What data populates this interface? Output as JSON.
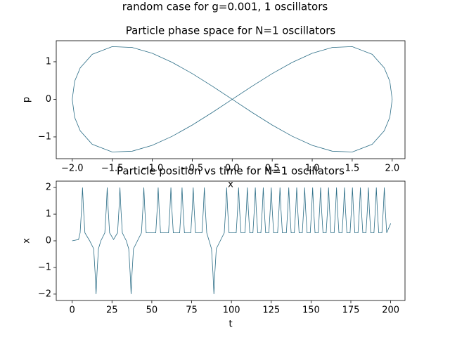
{
  "suptitle": "random case for g=0.001, 1 oscillators",
  "chart_data": [
    {
      "type": "line",
      "title": "Particle phase space for N=1 oscillators",
      "x_label": "x",
      "y_label": "p",
      "color": "#2b6d86",
      "x": [
        0,
        0.25,
        0.5,
        0.75,
        1,
        1.25,
        1.5,
        1.75,
        1.9,
        1.97,
        2,
        1.97,
        1.9,
        1.75,
        1.5,
        1.25,
        1,
        0.75,
        0.5,
        0.25,
        0,
        -0.25,
        -0.5,
        -0.75,
        -1,
        -1.25,
        -1.5,
        -1.75,
        -1.9,
        -1.97,
        -2,
        -1.97,
        -1.9,
        -1.75,
        -1.5,
        -1.25,
        -1,
        -0.75,
        -0.5,
        -0.25,
        0
      ],
      "values": [
        0,
        0.351,
        0.685,
        0.983,
        1.225,
        1.38,
        1.403,
        1.198,
        0.839,
        0.481,
        0,
        -0.481,
        -0.839,
        -1.198,
        -1.403,
        -1.38,
        -1.225,
        -0.983,
        -0.685,
        -0.351,
        0,
        -0.351,
        -0.685,
        -0.983,
        -1.225,
        -1.38,
        -1.403,
        -1.198,
        -0.839,
        -0.481,
        0,
        0.481,
        0.839,
        1.198,
        1.403,
        1.38,
        1.225,
        0.983,
        0.685,
        0.351,
        0
      ],
      "xlim": [
        -2.2,
        2.16
      ],
      "ylim": [
        -1.58,
        1.56
      ],
      "xticks": [
        {
          "value": -2,
          "label": "−2.0"
        },
        {
          "value": -1.5,
          "label": "−1.5"
        },
        {
          "value": -1,
          "label": "−1.0"
        },
        {
          "value": -0.5,
          "label": "−0.5"
        },
        {
          "value": 0,
          "label": "0.0"
        },
        0.5,
        {
          "value": 1,
          "label": "1.0"
        },
        1.5,
        {
          "value": 2,
          "label": "2.0"
        }
      ],
      "yticks": [
        {
          "value": -1,
          "label": "−1"
        },
        0,
        1
      ]
    },
    {
      "type": "line",
      "title": "Particle position vs time for N=1 oscillators",
      "x_label": "t",
      "y_label": "x",
      "color": "#2b6d86",
      "x": [
        0,
        4,
        5,
        5.9,
        6.5,
        7.1,
        8,
        11,
        13.5,
        14.4,
        15,
        15.6,
        16.5,
        18,
        20.5,
        21.4,
        22,
        22.6,
        23.5,
        26,
        28.5,
        29.4,
        30,
        30.6,
        31.5,
        34,
        35.5,
        36.4,
        37,
        37.6,
        38.5,
        41,
        43.5,
        44.4,
        45,
        45.6,
        46.5,
        52.5,
        53.4,
        54,
        54.6,
        55.5,
        60.5,
        61.4,
        62,
        62.6,
        63.5,
        67.5,
        68.4,
        69,
        69.6,
        70.5,
        74.5,
        75.4,
        76,
        76.6,
        77.5,
        81.5,
        82.4,
        83,
        83.6,
        84.5,
        86,
        87.5,
        88.4,
        89,
        89.6,
        90.5,
        93,
        95.5,
        96.4,
        97,
        97.6,
        98.5,
        103,
        103.9,
        104.5,
        105.1,
        106,
        108.5,
        109.4,
        110,
        110.6,
        111.5,
        113.5,
        114.4,
        115,
        115.6,
        116.5,
        118.5,
        119.4,
        120,
        120.6,
        121.5,
        123.5,
        124.4,
        125,
        125.6,
        126.5,
        129,
        129.9,
        130.5,
        131.1,
        132,
        134.5,
        135.4,
        136,
        136.6,
        137.5,
        139.5,
        140.4,
        141,
        141.6,
        142.5,
        144.5,
        145.4,
        146,
        146.6,
        147.5,
        149.5,
        150.4,
        151,
        151.6,
        152.5,
        154.5,
        155.4,
        156,
        156.6,
        157.5,
        159.5,
        160.4,
        161,
        161.6,
        162.5,
        164.5,
        165.4,
        166,
        166.6,
        167.5,
        169.5,
        170.4,
        171,
        171.6,
        172.5,
        174.5,
        175.4,
        176,
        176.6,
        177.5,
        179.5,
        180.4,
        181,
        181.6,
        182.5,
        184.5,
        185.4,
        186,
        186.6,
        187.5,
        189.5,
        190.4,
        191,
        191.6,
        192.5,
        194.5,
        195.4,
        196,
        196.6,
        197.5,
        200
      ],
      "values": [
        0,
        0.05,
        0.3,
        1.2,
        2,
        1.2,
        0.3,
        0,
        -0.3,
        -1.2,
        -2,
        -1.2,
        -0.3,
        0,
        0.3,
        1.2,
        2,
        1.2,
        0.3,
        0.05,
        0.3,
        1.2,
        2,
        1.2,
        0.3,
        0,
        -0.3,
        -1.2,
        -2,
        -1.2,
        -0.3,
        0,
        0.3,
        1.2,
        2,
        1.2,
        0.3,
        0.3,
        1.2,
        2,
        1.2,
        0.3,
        0.3,
        1.2,
        2,
        1.2,
        0.3,
        0.3,
        1.2,
        2,
        1.2,
        0.3,
        0.3,
        1.2,
        2,
        1.2,
        0.3,
        0.3,
        1.2,
        2,
        1.2,
        0.3,
        0,
        -0.3,
        -1.2,
        -2,
        -1.2,
        -0.3,
        0,
        0.3,
        1.2,
        2,
        1.2,
        0.3,
        0.3,
        1.2,
        2,
        1.2,
        0.3,
        0.3,
        1.2,
        2,
        1.2,
        0.3,
        0.3,
        1.2,
        2,
        1.2,
        0.3,
        0.3,
        1.2,
        2,
        1.2,
        0.3,
        0.3,
        1.2,
        2,
        1.2,
        0.3,
        0.3,
        1.2,
        2,
        1.2,
        0.3,
        0.3,
        1.2,
        2,
        1.2,
        0.3,
        0.3,
        1.2,
        2,
        1.2,
        0.3,
        0.3,
        1.2,
        2,
        1.2,
        0.3,
        0.3,
        1.2,
        2,
        1.2,
        0.3,
        0.3,
        1.2,
        2,
        1.2,
        0.3,
        0.3,
        1.2,
        2,
        1.2,
        0.3,
        0.3,
        1.2,
        2,
        1.2,
        0.3,
        0.3,
        1.2,
        2,
        1.2,
        0.3,
        0.3,
        1.2,
        2,
        1.2,
        0.3,
        0.3,
        1.2,
        2,
        1.2,
        0.3,
        0.3,
        1.2,
        2,
        1.2,
        0.3,
        0.3,
        1.2,
        2,
        1.2,
        0.3,
        0.3,
        1.2,
        2,
        1.2,
        0.3,
        0.65
      ],
      "xlim": [
        -10,
        209
      ],
      "ylim": [
        -2.24,
        2.24
      ],
      "xticks": [
        0,
        25,
        50,
        75,
        100,
        125,
        150,
        175,
        200
      ],
      "yticks": [
        {
          "value": -2,
          "label": "−2"
        },
        {
          "value": -1,
          "label": "−1"
        },
        0,
        1,
        2
      ]
    }
  ]
}
